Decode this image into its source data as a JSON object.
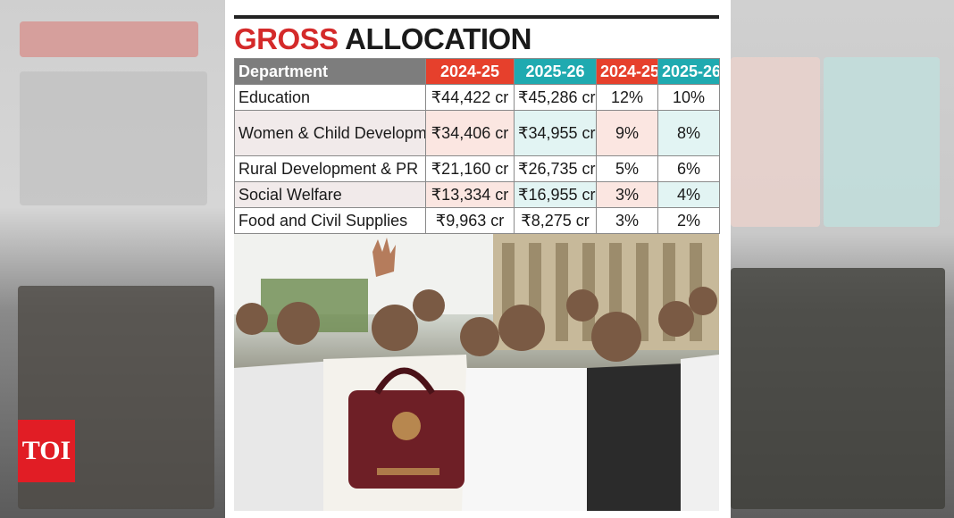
{
  "title": {
    "word1": "GROSS",
    "word2": "ALLOCATION"
  },
  "table": {
    "headers": [
      "Department",
      "2024-25",
      "2025-26",
      "2024-25",
      "2025-26"
    ],
    "rows": [
      {
        "dept": "Education",
        "alloc_2024": "₹44,422 cr",
        "alloc_2025": "₹45,286 cr",
        "share_2024": "12%",
        "share_2025": "10%"
      },
      {
        "dept": "Women & Child Development",
        "alloc_2024": "₹34,406 cr",
        "alloc_2025": "₹34,955 cr",
        "share_2024": "9%",
        "share_2025": "8%"
      },
      {
        "dept": "Rural Development & PR",
        "alloc_2024": "₹21,160 cr",
        "alloc_2025": "₹26,735 cr",
        "share_2024": "5%",
        "share_2025": "6%"
      },
      {
        "dept": "Social Welfare",
        "alloc_2024": "₹13,334 cr",
        "alloc_2025": "₹16,955 cr",
        "share_2024": "3%",
        "share_2025": "4%"
      },
      {
        "dept": "Food and Civil Supplies",
        "alloc_2024": "₹9,963 cr",
        "alloc_2025": "₹8,275 cr",
        "share_2024": "3%",
        "share_2025": "2%"
      }
    ]
  },
  "colors": {
    "accent_red": "#e6402c",
    "accent_teal": "#1faab0",
    "title_red": "#d42a2a",
    "logo_red": "#e11d25"
  },
  "photo": {
    "description_icon": "group-photo"
  },
  "logo": {
    "text": "TOI"
  }
}
